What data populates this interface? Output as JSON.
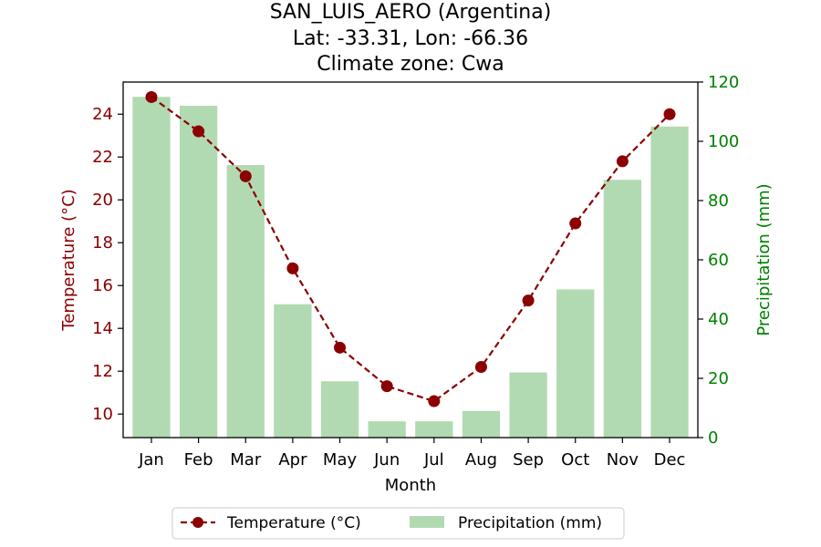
{
  "chart_data": {
    "type": "bar+line",
    "title_lines": [
      "SAN_LUIS_AERO (Argentina)",
      "Lat: -33.31, Lon: -66.36",
      "Climate zone: Cwa"
    ],
    "xlabel": "Month",
    "ylabel_left": "Temperature (°C)",
    "ylabel_right": "Precipitation (mm)",
    "categories": [
      "Jan",
      "Feb",
      "Mar",
      "Apr",
      "May",
      "Jun",
      "Jul",
      "Aug",
      "Sep",
      "Oct",
      "Nov",
      "Dec"
    ],
    "temperature": {
      "name": "Temperature (°C)",
      "color": "#8b0000",
      "values": [
        24.8,
        23.2,
        21.1,
        16.8,
        13.1,
        11.3,
        10.6,
        12.2,
        15.3,
        18.9,
        21.8,
        24.0
      ],
      "ylim": [
        8.9,
        25.5
      ],
      "ticks": [
        10,
        12,
        14,
        16,
        18,
        20,
        22,
        24
      ]
    },
    "precipitation": {
      "name": "Precipitation (mm)",
      "color": "#b2dab2",
      "values": [
        115,
        112,
        92,
        45,
        19,
        5.5,
        5.5,
        9,
        22,
        50,
        87,
        105
      ],
      "ylim": [
        0,
        120
      ],
      "ticks": [
        0,
        20,
        40,
        60,
        80,
        100,
        120
      ]
    },
    "legend_position": "bottom-center"
  }
}
